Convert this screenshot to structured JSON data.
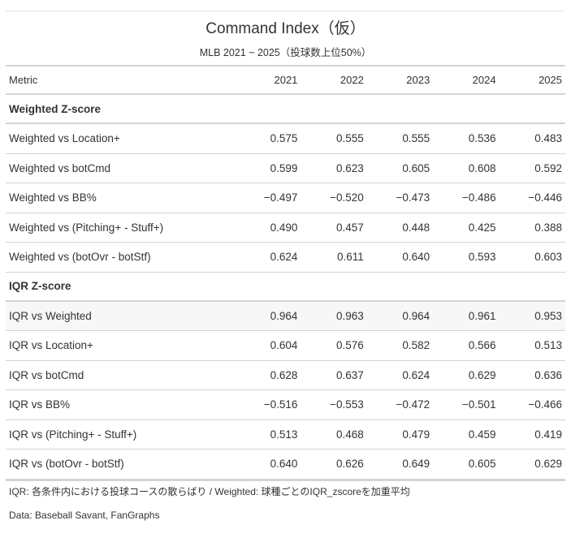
{
  "title": "Command Index（仮）",
  "subtitle": "MLB 2021 ~ 2025（投球数上位50%）",
  "columns": {
    "metric": "Metric",
    "years": [
      "2021",
      "2022",
      "2023",
      "2024",
      "2025"
    ]
  },
  "groups": [
    {
      "label": "Weighted Z-score",
      "rows": [
        {
          "metric": "Weighted vs Location+",
          "values": [
            "0.575",
            "0.555",
            "0.555",
            "0.536",
            "0.483"
          ]
        },
        {
          "metric": "Weighted vs botCmd",
          "values": [
            "0.599",
            "0.623",
            "0.605",
            "0.608",
            "0.592"
          ]
        },
        {
          "metric": "Weighted vs BB%",
          "values": [
            "−0.497",
            "−0.520",
            "−0.473",
            "−0.486",
            "−0.446"
          ]
        },
        {
          "metric": "Weighted vs (Pitching+ - Stuff+)",
          "values": [
            "0.490",
            "0.457",
            "0.448",
            "0.425",
            "0.388"
          ]
        },
        {
          "metric": "Weighted vs (botOvr - botStf)",
          "values": [
            "0.624",
            "0.611",
            "0.640",
            "0.593",
            "0.603"
          ]
        }
      ]
    },
    {
      "label": "IQR Z-score",
      "rows": [
        {
          "metric": "IQR vs Weighted",
          "values": [
            "0.964",
            "0.963",
            "0.964",
            "0.961",
            "0.953"
          ],
          "highlight": true
        },
        {
          "metric": "IQR vs Location+",
          "values": [
            "0.604",
            "0.576",
            "0.582",
            "0.566",
            "0.513"
          ]
        },
        {
          "metric": "IQR vs botCmd",
          "values": [
            "0.628",
            "0.637",
            "0.624",
            "0.629",
            "0.636"
          ]
        },
        {
          "metric": "IQR vs BB%",
          "values": [
            "−0.516",
            "−0.553",
            "−0.472",
            "−0.501",
            "−0.466"
          ]
        },
        {
          "metric": "IQR vs (Pitching+ - Stuff+)",
          "values": [
            "0.513",
            "0.468",
            "0.479",
            "0.459",
            "0.419"
          ]
        },
        {
          "metric": "IQR vs (botOvr - botStf)",
          "values": [
            "0.640",
            "0.626",
            "0.649",
            "0.605",
            "0.629"
          ]
        }
      ]
    }
  ],
  "notes": {
    "note1": "IQR: 各条件内における投球コースの散らばり / Weighted: 球種ごとのIQR_zscoreを加重平均",
    "note2": "Data: Baseball Savant, FanGraphs"
  },
  "colors": {
    "text": "#333333",
    "rule": "#d3d3d3",
    "highlight_row": "#f7f7f8"
  }
}
